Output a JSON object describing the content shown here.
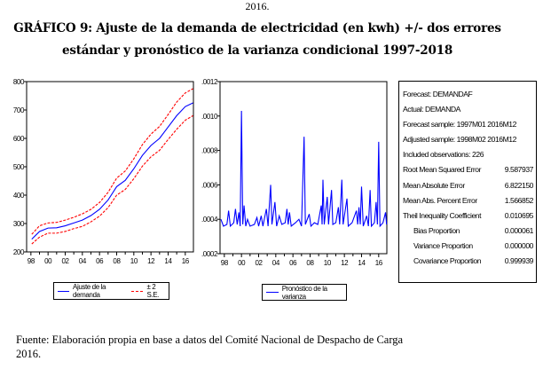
{
  "prev_text": "2016.",
  "title": {
    "line1": "GRÁFICO 9: Ajuste de la demanda de electricidad (en kwh) +/- dos errores",
    "line2": "estándar y pronóstico de la varianza condicional 1997-2018"
  },
  "source": {
    "line1": "Fuente: Elaboración propia en base a datos del Comité Nacional de Despacho de Carga",
    "line2": "2016."
  },
  "stats": {
    "header": [
      "Forecast: DEMANDAF",
      "Actual: DEMANDA",
      "Forecast sample: 1997M01 2016M12",
      "Adjusted sample: 1998M02 2016M12",
      "Included observations: 226"
    ],
    "rows": [
      {
        "label": "Root Mean Squared Error",
        "value": "9.587937",
        "indent": false
      },
      {
        "label": "Mean Absolute Error",
        "value": "6.822150",
        "indent": false
      },
      {
        "label": "Mean Abs. Percent Error",
        "value": "1.566852",
        "indent": false
      },
      {
        "label": "Theil Inequality Coefficient",
        "value": "0.010695",
        "indent": false
      },
      {
        "label": "Bias Proportion",
        "value": "0.000061",
        "indent": true
      },
      {
        "label": "Variance Proportion",
        "value": "0.000000",
        "indent": true
      },
      {
        "label": "Covariance Proportion",
        "value": "0.999939",
        "indent": true
      }
    ]
  },
  "chart_data": [
    {
      "type": "line",
      "xlim": [
        1997.5,
        2016.95
      ],
      "ylim": [
        200,
        800
      ],
      "yticks": [
        200,
        300,
        400,
        500,
        600,
        700,
        800
      ],
      "xticks": [
        {
          "v": 1998,
          "l": "98"
        },
        {
          "v": 2000,
          "l": "00"
        },
        {
          "v": 2002,
          "l": "02"
        },
        {
          "v": 2004,
          "l": "04"
        },
        {
          "v": 2006,
          "l": "06"
        },
        {
          "v": 2008,
          "l": "08"
        },
        {
          "v": 2010,
          "l": "10"
        },
        {
          "v": 2012,
          "l": "12"
        },
        {
          "v": 2014,
          "l": "14"
        },
        {
          "v": 2016,
          "l": "16"
        }
      ],
      "legend_position": "bottom",
      "grid": false,
      "x": [
        1998.1,
        1999,
        2000,
        2001,
        2002,
        2003,
        2004,
        2005,
        2006,
        2007,
        2008,
        2009,
        2010,
        2011,
        2012,
        2013,
        2014,
        2015,
        2016,
        2016.9
      ],
      "series": [
        {
          "name": "Ajuste de la demanda",
          "color": "#0000ff",
          "style": "solid",
          "values": [
            245,
            272,
            284,
            285,
            292,
            302,
            312,
            328,
            350,
            383,
            430,
            452,
            493,
            540,
            575,
            600,
            640,
            680,
            712,
            725
          ]
        },
        {
          "name": "± 2 S.E.",
          "color": "#ff0000",
          "style": "dashed",
          "values": [
            262,
            292,
            302,
            304,
            312,
            322,
            334,
            350,
            374,
            410,
            460,
            485,
            528,
            578,
            615,
            642,
            684,
            728,
            760,
            775
          ]
        },
        {
          "name": "± 2 S.E.",
          "color": "#ff0000",
          "style": "dashed",
          "values": [
            228,
            252,
            266,
            266,
            272,
            282,
            290,
            306,
            326,
            356,
            400,
            420,
            458,
            502,
            535,
            558,
            596,
            632,
            664,
            680
          ]
        }
      ]
    },
    {
      "type": "line",
      "xlim": [
        1997.5,
        2016.95
      ],
      "ylim": [
        0.0002,
        0.0012
      ],
      "yticks": [
        {
          "v": 0.0002,
          "l": ".0002"
        },
        {
          "v": 0.0004,
          "l": ".0004"
        },
        {
          "v": 0.0006,
          "l": ".0006"
        },
        {
          "v": 0.0008,
          "l": ".0008"
        },
        {
          "v": 0.001,
          "l": ".0010"
        },
        {
          "v": 0.0012,
          "l": ".0012"
        }
      ],
      "xticks": [
        {
          "v": 1998,
          "l": "98"
        },
        {
          "v": 2000,
          "l": "00"
        },
        {
          "v": 2002,
          "l": "02"
        },
        {
          "v": 2004,
          "l": "04"
        },
        {
          "v": 2006,
          "l": "06"
        },
        {
          "v": 2008,
          "l": "08"
        },
        {
          "v": 2010,
          "l": "10"
        },
        {
          "v": 2012,
          "l": "12"
        },
        {
          "v": 2014,
          "l": "14"
        },
        {
          "v": 2016,
          "l": "16"
        }
      ],
      "legend_position": "bottom",
      "grid": false,
      "series": [
        {
          "name": "Pronóstico de la varianza",
          "color": "#0000ff",
          "points": [
            [
              1997.6,
              0.0004
            ],
            [
              1997.9,
              0.00036
            ],
            [
              1998.3,
              0.00037
            ],
            [
              1998.5,
              0.00045
            ],
            [
              1998.7,
              0.00036
            ],
            [
              1999.1,
              0.00038
            ],
            [
              1999.3,
              0.00046
            ],
            [
              1999.5,
              0.00037
            ],
            [
              1999.7,
              0.00044
            ],
            [
              1999.85,
              0.00036
            ],
            [
              2000.0,
              0.00103
            ],
            [
              2000.15,
              0.00037
            ],
            [
              2000.3,
              0.00048
            ],
            [
              2000.5,
              0.00036
            ],
            [
              2000.7,
              0.0004
            ],
            [
              2001.0,
              0.00036
            ],
            [
              2001.5,
              0.00037
            ],
            [
              2001.8,
              0.00041
            ],
            [
              2002.0,
              0.00036
            ],
            [
              2002.3,
              0.00042
            ],
            [
              2002.5,
              0.00036
            ],
            [
              2002.9,
              0.00046
            ],
            [
              2003.1,
              0.00036
            ],
            [
              2003.4,
              0.0006
            ],
            [
              2003.55,
              0.00037
            ],
            [
              2003.9,
              0.0005
            ],
            [
              2004.1,
              0.00036
            ],
            [
              2004.4,
              0.00042
            ],
            [
              2004.7,
              0.00037
            ],
            [
              2005.1,
              0.00038
            ],
            [
              2005.3,
              0.00046
            ],
            [
              2005.45,
              0.00037
            ],
            [
              2005.6,
              0.00044
            ],
            [
              2005.8,
              0.00036
            ],
            [
              2006.3,
              0.00038
            ],
            [
              2006.7,
              0.0004
            ],
            [
              2007.0,
              0.00036
            ],
            [
              2007.3,
              0.00088
            ],
            [
              2007.45,
              0.00037
            ],
            [
              2007.9,
              0.00043
            ],
            [
              2008.1,
              0.00036
            ],
            [
              2008.5,
              0.00038
            ],
            [
              2008.9,
              0.00037
            ],
            [
              2009.3,
              0.00048
            ],
            [
              2009.4,
              0.00037
            ],
            [
              2009.5,
              0.00063
            ],
            [
              2009.65,
              0.00037
            ],
            [
              2010.0,
              0.00053
            ],
            [
              2010.15,
              0.00037
            ],
            [
              2010.5,
              0.00057
            ],
            [
              2010.65,
              0.00037
            ],
            [
              2011.0,
              0.00038
            ],
            [
              2011.3,
              0.00047
            ],
            [
              2011.45,
              0.00037
            ],
            [
              2011.7,
              0.00063
            ],
            [
              2011.85,
              0.00037
            ],
            [
              2012.3,
              0.00052
            ],
            [
              2012.45,
              0.00036
            ],
            [
              2012.9,
              0.00038
            ],
            [
              2013.4,
              0.00045
            ],
            [
              2013.55,
              0.00037
            ],
            [
              2013.7,
              0.00047
            ],
            [
              2013.85,
              0.00037
            ],
            [
              2014.0,
              0.00059
            ],
            [
              2014.2,
              0.00036
            ],
            [
              2014.6,
              0.00042
            ],
            [
              2014.8,
              0.00036
            ],
            [
              2015.0,
              0.00057
            ],
            [
              2015.15,
              0.00036
            ],
            [
              2015.5,
              0.00038
            ],
            [
              2015.7,
              0.0005
            ],
            [
              2015.85,
              0.00037
            ],
            [
              2016.0,
              0.00085
            ],
            [
              2016.15,
              0.00036
            ],
            [
              2016.5,
              0.00038
            ],
            [
              2016.8,
              0.00044
            ],
            [
              2016.92,
              0.00037
            ]
          ]
        }
      ]
    }
  ]
}
